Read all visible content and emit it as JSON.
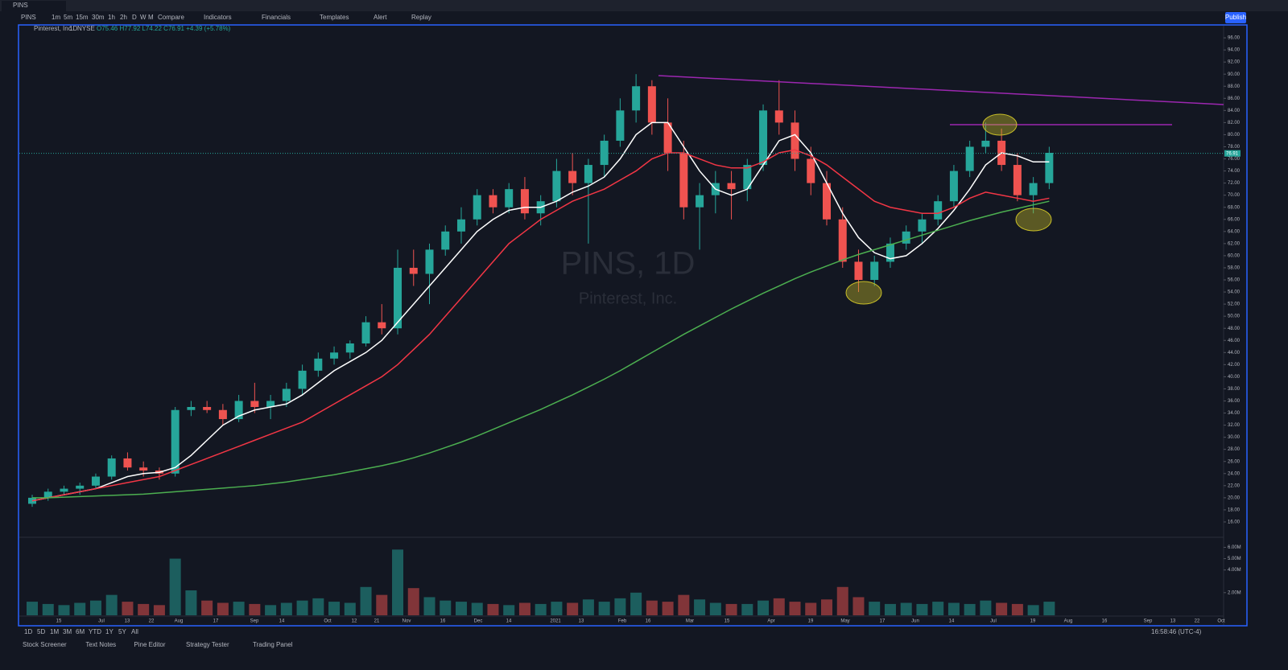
{
  "topbar": {
    "tab": "PINS",
    "symbol": "PINS",
    "intervals": [
      "1m",
      "5m",
      "15m",
      "30m",
      "1h",
      "2h",
      "D",
      "W",
      "M"
    ],
    "tools": [
      "Compare",
      "Indicators",
      "Financials",
      "Templates",
      "Alert",
      "Replay"
    ],
    "publish": "Publish"
  },
  "legend": {
    "name": "Pinterest, Inc.",
    "interval": "1D",
    "exchange": "NYSE",
    "ohlc": "O75.46 H77.92 L74.22 C76.91 +4.39 (+5.78%)"
  },
  "watermark": {
    "symbol": "PINS, 1D",
    "name": "Pinterest, Inc."
  },
  "bottom": {
    "ranges": [
      "1D",
      "5D",
      "1M",
      "3M",
      "6M",
      "YTD",
      "1Y",
      "5Y",
      "All"
    ],
    "clock": "16:58:46 (UTC-4)",
    "tabs": [
      "Stock Screener",
      "Text Notes",
      "Pine Editor",
      "Strategy Tester",
      "Trading Panel"
    ]
  },
  "chart_data": {
    "type": "candlestick",
    "time_labels": [
      "15",
      "Jul",
      "13",
      "22",
      "Aug",
      "17",
      "Sep",
      "14",
      "Oct",
      "12",
      "21",
      "Nov",
      "16",
      "Dec",
      "14",
      "2021",
      "13",
      "Feb",
      "16",
      "Mar",
      "15",
      "Apr",
      "19",
      "May",
      "17",
      "Jun",
      "14",
      "Jul",
      "19",
      "Aug",
      "16",
      "Sep",
      "13",
      "22",
      "Oct"
    ],
    "open": [
      19,
      20,
      21,
      21.5,
      22,
      23.5,
      26.5,
      25,
      24.5,
      24,
      34.5,
      35,
      34.5,
      33,
      36,
      35,
      36,
      38,
      41,
      43,
      44,
      45.5,
      49,
      48,
      58,
      57,
      61,
      64,
      66,
      70,
      68,
      71,
      67,
      69,
      74,
      72,
      75,
      79,
      84,
      88,
      82,
      77,
      68,
      70,
      72,
      71,
      75,
      84,
      82,
      76,
      72,
      66,
      59,
      56,
      59,
      62,
      64,
      66,
      69,
      74,
      78,
      79,
      75,
      70,
      72
    ],
    "high": [
      20.5,
      21.5,
      22,
      22.5,
      24,
      27,
      27.5,
      26,
      25,
      35,
      36,
      36,
      35.5,
      37,
      39,
      37,
      39,
      42,
      44,
      45,
      46,
      50,
      52,
      61,
      61,
      62,
      65,
      68,
      71,
      71,
      72,
      73,
      70,
      76,
      77,
      76,
      80,
      86,
      90,
      89,
      86,
      79,
      72,
      74,
      74,
      76,
      85,
      89,
      84,
      78,
      74,
      68,
      61,
      60,
      63,
      65,
      67,
      70,
      75,
      79,
      82,
      81,
      77,
      73,
      78
    ],
    "low": [
      18.5,
      19.5,
      20.5,
      20.5,
      21.5,
      23,
      24.5,
      23.5,
      23,
      23.5,
      33.5,
      34,
      32,
      32.5,
      34,
      33,
      35,
      37,
      40,
      42,
      43,
      45,
      47,
      47,
      55,
      52,
      60,
      62,
      65,
      67,
      67,
      66,
      65,
      68,
      70,
      62,
      73,
      78,
      82,
      80,
      74,
      66,
      61,
      67,
      66,
      69,
      74,
      80,
      74,
      70,
      65,
      58,
      54,
      55,
      58,
      61,
      62,
      65,
      68,
      73,
      77,
      74,
      69,
      67,
      71
    ],
    "close": [
      20,
      21,
      21.5,
      22,
      23.5,
      26.5,
      25,
      24.5,
      24,
      34.5,
      35,
      34.5,
      33,
      36,
      35,
      36,
      38,
      41,
      43,
      44,
      45.5,
      49,
      48,
      58,
      57,
      61,
      64,
      66,
      70,
      68,
      71,
      67,
      69,
      74,
      72,
      75,
      79,
      84,
      88,
      82,
      77,
      68,
      70,
      72,
      71,
      75,
      84,
      82,
      76,
      72,
      66,
      59,
      56,
      59,
      62,
      64,
      66,
      69,
      74,
      78,
      79,
      75,
      70,
      72,
      77
    ],
    "volume": [
      1.2,
      1.0,
      0.9,
      1.1,
      1.3,
      1.8,
      1.2,
      1.0,
      0.9,
      5.0,
      2.2,
      1.3,
      1.1,
      1.2,
      1.0,
      0.9,
      1.1,
      1.3,
      1.5,
      1.2,
      1.1,
      2.5,
      1.8,
      5.8,
      2.4,
      1.6,
      1.3,
      1.2,
      1.1,
      1.0,
      0.9,
      1.1,
      1.0,
      1.2,
      1.1,
      1.4,
      1.2,
      1.5,
      2.0,
      1.3,
      1.2,
      1.8,
      1.4,
      1.1,
      1.0,
      1.0,
      1.3,
      1.5,
      1.2,
      1.1,
      1.4,
      2.5,
      1.6,
      1.2,
      1.0,
      1.1,
      1.0,
      1.2,
      1.1,
      1.0,
      1.3,
      1.1,
      1.0,
      0.9,
      1.2
    ],
    "series": [
      {
        "name": "MA 20",
        "color": "#ffffff",
        "values": [
          19.5,
          20,
          20.5,
          21,
          21.5,
          22.5,
          23.5,
          24,
          24.2,
          25,
          27,
          29.5,
          32,
          33.5,
          34.5,
          35,
          35.5,
          37,
          39,
          41,
          42.5,
          44,
          46,
          49,
          52,
          55,
          58,
          61,
          64,
          66,
          67.5,
          68,
          68,
          69,
          70.5,
          71.5,
          73,
          76,
          80,
          82,
          82,
          78,
          74,
          71,
          70,
          71,
          75,
          79,
          80,
          77,
          72,
          67,
          63,
          60.5,
          59.5,
          60,
          62,
          64.5,
          67.5,
          71,
          75,
          77,
          76.5,
          75.5,
          75.5
        ]
      },
      {
        "name": "MA 50",
        "color": "#f23645",
        "values": [
          19.5,
          20,
          20.5,
          21,
          21.5,
          22,
          22.5,
          23,
          23.5,
          24.5,
          25.5,
          26.5,
          27.5,
          28.5,
          29.5,
          30.5,
          31.5,
          32.5,
          34,
          35.5,
          37,
          38.5,
          40,
          42,
          44.5,
          47,
          50,
          53,
          56,
          59,
          62,
          64,
          66,
          67.5,
          69,
          70,
          71,
          72.5,
          74,
          76,
          77,
          77,
          76,
          75,
          74.5,
          74.5,
          75.5,
          77,
          77.5,
          76.5,
          75,
          73,
          71,
          69,
          68,
          67.5,
          67,
          67,
          68,
          69.5,
          70.5,
          70,
          69.5,
          69,
          69.5
        ]
      },
      {
        "name": "MA 200",
        "color": "#4caf50",
        "values": [
          20,
          20,
          20.1,
          20.2,
          20.3,
          20.4,
          20.5,
          20.6,
          20.8,
          21,
          21.2,
          21.4,
          21.6,
          21.8,
          22,
          22.3,
          22.6,
          23,
          23.4,
          23.8,
          24.3,
          24.8,
          25.3,
          25.9,
          26.6,
          27.4,
          28.3,
          29.2,
          30.2,
          31.3,
          32.4,
          33.5,
          34.6,
          35.8,
          37,
          38.3,
          39.6,
          41,
          42.5,
          44,
          45.5,
          47,
          48.4,
          49.8,
          51.2,
          52.5,
          53.8,
          55,
          56.2,
          57.3,
          58.3,
          59.3,
          60.2,
          61,
          61.8,
          62.6,
          63.4,
          64.2,
          65,
          65.8,
          66.5,
          67.2,
          67.8,
          68.4,
          69
        ]
      }
    ],
    "up_color": "#26a69a",
    "down_color": "#ef5350",
    "ylim": [
      14,
      98
    ],
    "yticks": [
      {
        "value": 16,
        "label": "16.00"
      },
      {
        "value": 18,
        "label": "18.00"
      },
      {
        "value": 20,
        "label": "20.00"
      },
      {
        "value": 22,
        "label": "22.00"
      },
      {
        "value": 24,
        "label": "24.00"
      },
      {
        "value": 26,
        "label": "26.00"
      },
      {
        "value": 28,
        "label": "28.00"
      },
      {
        "value": 30,
        "label": "30.00"
      },
      {
        "value": 32,
        "label": "32.00"
      },
      {
        "value": 34,
        "label": "34.00"
      },
      {
        "value": 36,
        "label": "36.00"
      },
      {
        "value": 38,
        "label": "38.00"
      },
      {
        "value": 40,
        "label": "40.00"
      },
      {
        "value": 42,
        "label": "42.00"
      },
      {
        "value": 44,
        "label": "44.00"
      },
      {
        "value": 46,
        "label": "46.00"
      },
      {
        "value": 48,
        "label": "48.00"
      },
      {
        "value": 50,
        "label": "50.00"
      },
      {
        "value": 52,
        "label": "52.00"
      },
      {
        "value": 54,
        "label": "54.00"
      },
      {
        "value": 56,
        "label": "56.00"
      },
      {
        "value": 58,
        "label": "58.00"
      },
      {
        "value": 60,
        "label": "60.00"
      },
      {
        "value": 62,
        "label": "62.00"
      },
      {
        "value": 64,
        "label": "64.00"
      },
      {
        "value": 66,
        "label": "66.00"
      },
      {
        "value": 68,
        "label": "68.00"
      },
      {
        "value": 70,
        "label": "70.00"
      },
      {
        "value": 72,
        "label": "72.00"
      },
      {
        "value": 74,
        "label": "74.00"
      },
      {
        "value": 76,
        "label": "76.00"
      },
      {
        "value": 78,
        "label": "78.00"
      },
      {
        "value": 80,
        "label": "80.00"
      },
      {
        "value": 82,
        "label": "82.00"
      },
      {
        "value": 84,
        "label": "84.00"
      },
      {
        "value": 86,
        "label": "86.00"
      },
      {
        "value": 88,
        "label": "88.00"
      },
      {
        "value": 90,
        "label": "90.00"
      },
      {
        "value": 92,
        "label": "92.00"
      },
      {
        "value": 94,
        "label": "94.00"
      },
      {
        "value": 96,
        "label": "96.00"
      }
    ],
    "vlim": [
      0,
      6.6
    ],
    "vticks": [
      {
        "value": 2,
        "label": "2.00M"
      },
      {
        "value": 4,
        "label": "4.00M"
      },
      {
        "value": 5,
        "label": "5.00M"
      },
      {
        "value": 6,
        "label": "6.00M"
      }
    ],
    "last_price": {
      "value": 76.91,
      "label": "76.91"
    }
  }
}
